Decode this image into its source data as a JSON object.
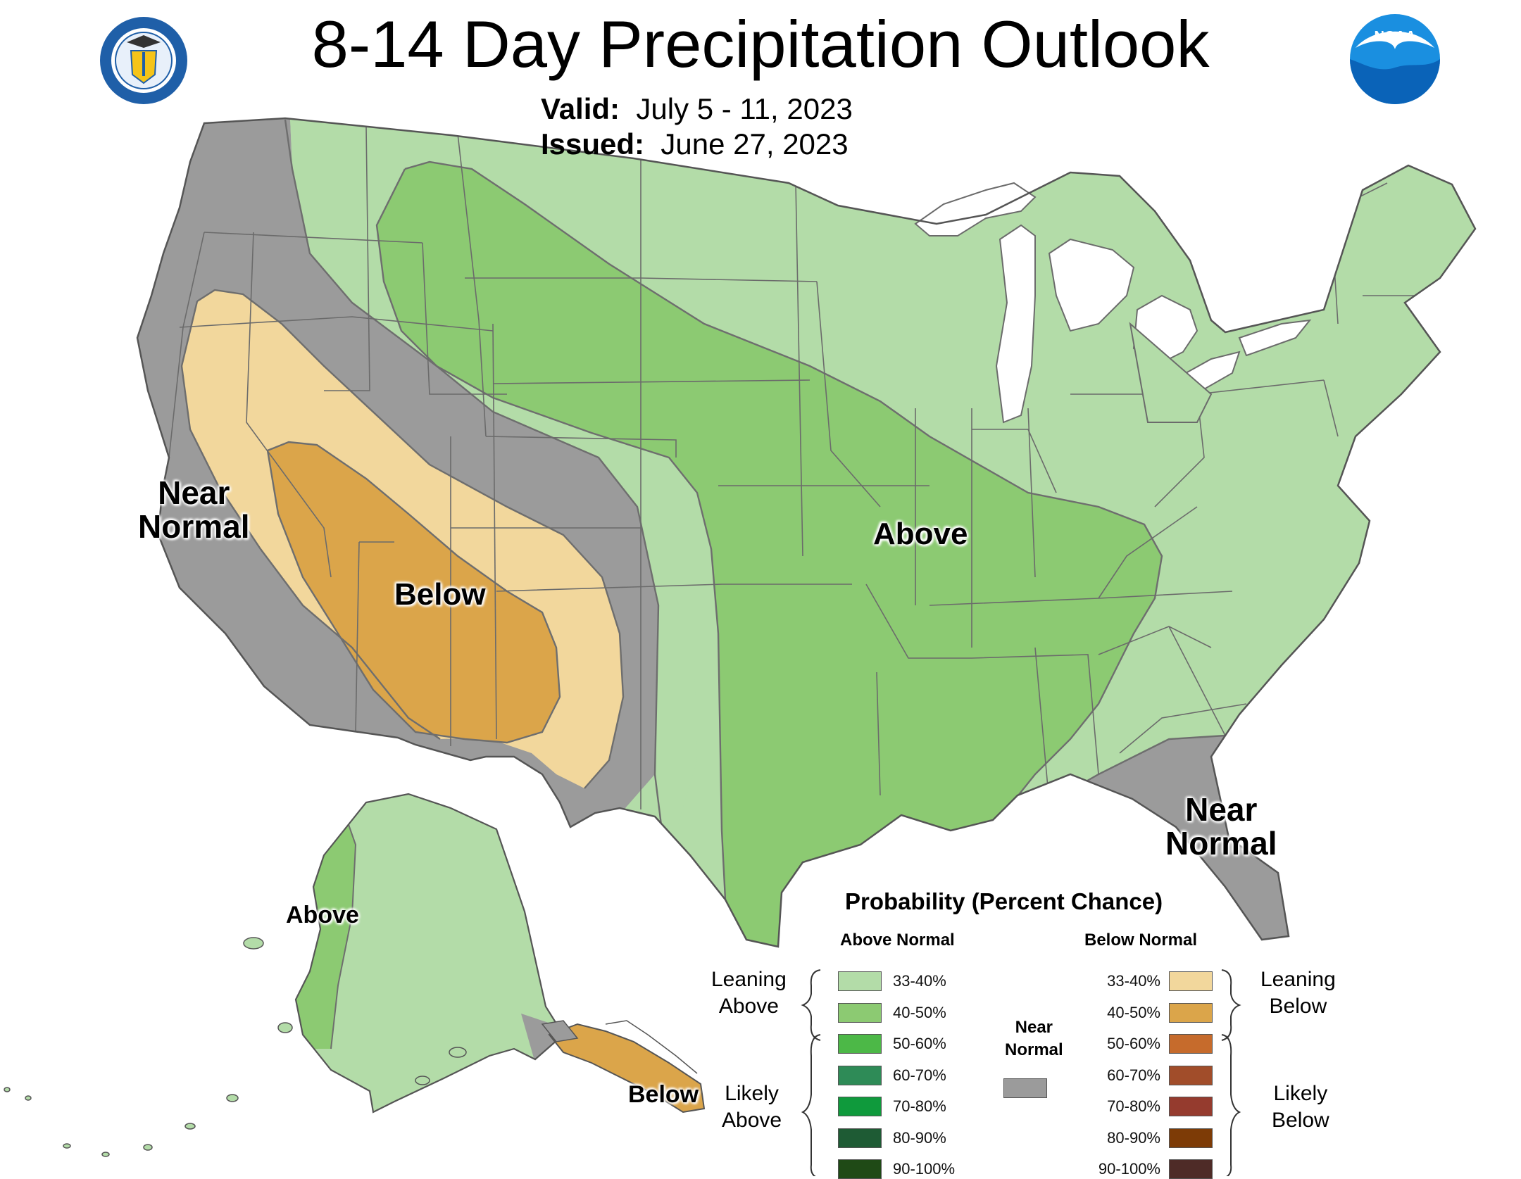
{
  "header": {
    "title": "8-14 Day Precipitation Outlook",
    "valid_label": "Valid:",
    "valid_value": "July 5 - 11, 2023",
    "issued_label": "Issued:",
    "issued_value": "June 27, 2023",
    "left_logo_icon": "department-of-commerce-seal-icon",
    "right_logo_icon": "noaa-logo-icon",
    "noaa_text": "NOAA"
  },
  "regions": {
    "west_near_normal": [
      "Near",
      "Normal"
    ],
    "southwest_below": "Below",
    "central_above": "Above",
    "florida_near_normal": [
      "Near",
      "Normal"
    ],
    "alaska_above": "Above",
    "alaska_below": "Below"
  },
  "colors": {
    "near_normal": "#9b9b9b",
    "above_33_40": "#b3dca8",
    "above_40_50": "#8cca72",
    "below_33_40": "#f2d79c",
    "below_40_50": "#dba54a",
    "water": "#ffffff",
    "state_lines": "#6b6b6b"
  },
  "legend": {
    "title": "Probability (Percent Chance)",
    "above_header": "Above Normal",
    "below_header": "Below Normal",
    "near_header": [
      "Near",
      "Normal"
    ],
    "near_color": "#9b9b9b",
    "leaning_above": [
      "Leaning",
      "Above"
    ],
    "likely_above": [
      "Likely",
      "Above"
    ],
    "leaning_below": [
      "Leaning",
      "Below"
    ],
    "likely_below": [
      "Likely",
      "Below"
    ],
    "above": [
      {
        "range": "33-40%",
        "color": "#b3dca8"
      },
      {
        "range": "40-50%",
        "color": "#8cca72"
      },
      {
        "range": "50-60%",
        "color": "#4cb847"
      },
      {
        "range": "60-70%",
        "color": "#2e8b57"
      },
      {
        "range": "70-80%",
        "color": "#0f9a3c"
      },
      {
        "range": "80-90%",
        "color": "#1e5b34"
      },
      {
        "range": "90-100%",
        "color": "#1f4a16"
      }
    ],
    "below": [
      {
        "range": "33-40%",
        "color": "#f2d79c"
      },
      {
        "range": "40-50%",
        "color": "#dba54a"
      },
      {
        "range": "50-60%",
        "color": "#c66b2c"
      },
      {
        "range": "60-70%",
        "color": "#a14d2a"
      },
      {
        "range": "70-80%",
        "color": "#953b2e"
      },
      {
        "range": "80-90%",
        "color": "#7d3b06"
      },
      {
        "range": "90-100%",
        "color": "#4e2b27"
      }
    ]
  }
}
